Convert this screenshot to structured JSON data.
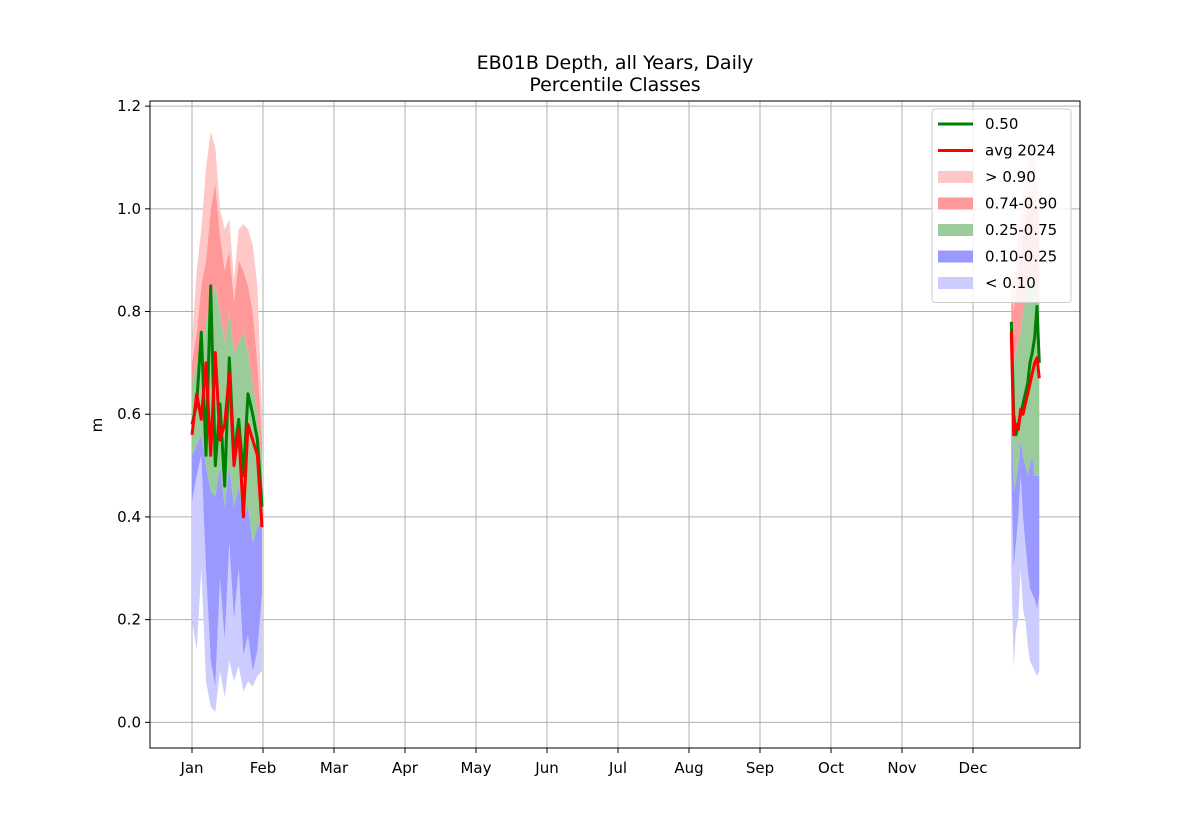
{
  "chart_data": {
    "type": "area",
    "title": "EB01B Depth, all Years, Daily",
    "subtitle": "Percentile Classes",
    "xlabel": "",
    "ylabel": "m",
    "x_axis": {
      "unit": "month",
      "tick_labels": [
        "Jan",
        "Feb",
        "Mar",
        "Apr",
        "May",
        "Jun",
        "Jul",
        "Aug",
        "Sep",
        "Oct",
        "Nov",
        "Dec"
      ],
      "day_range": [
        1,
        365
      ]
    },
    "ylim": [
      -0.05,
      1.21
    ],
    "yticks": [
      "0.0",
      "0.2",
      "0.4",
      "0.6",
      "0.8",
      "1.0",
      "1.2"
    ],
    "grid": true,
    "legend_position": "top-right",
    "colors": {
      "p50": "#008000",
      "avg": "#ff0000",
      "gt90": "#ffc8c8",
      "p74_90": "#ff9999",
      "p25_75": "#99cc99",
      "p10_25": "#9999ff",
      "lt10": "#ccccff"
    },
    "legend": [
      {
        "key": "p50",
        "label": "0.50",
        "kind": "line"
      },
      {
        "key": "avg",
        "label": "avg 2024",
        "kind": "line"
      },
      {
        "key": "gt90",
        "label": "> 0.90",
        "kind": "patch"
      },
      {
        "key": "p74_90",
        "label": "0.74-0.90",
        "kind": "patch"
      },
      {
        "key": "p25_75",
        "label": "0.25-0.75",
        "kind": "patch"
      },
      {
        "key": "p10_25",
        "label": "0.10-0.25",
        "kind": "patch"
      },
      {
        "key": "lt10",
        "label": "< 0.10",
        "kind": "patch"
      }
    ],
    "segments": [
      {
        "days": [
          1,
          3,
          5,
          7,
          9,
          11,
          13,
          15,
          17,
          19,
          21,
          23,
          25,
          27,
          29,
          31
        ],
        "min": [
          0.2,
          0.14,
          0.3,
          0.08,
          0.03,
          0.02,
          0.1,
          0.05,
          0.12,
          0.08,
          0.11,
          0.06,
          0.08,
          0.07,
          0.09,
          0.1
        ],
        "p10": [
          0.43,
          0.48,
          0.52,
          0.3,
          0.12,
          0.07,
          0.28,
          0.16,
          0.35,
          0.2,
          0.3,
          0.13,
          0.17,
          0.1,
          0.14,
          0.25
        ],
        "p25": [
          0.52,
          0.54,
          0.56,
          0.5,
          0.45,
          0.44,
          0.5,
          0.42,
          0.5,
          0.42,
          0.46,
          0.4,
          0.42,
          0.35,
          0.38,
          0.4
        ],
        "p75": [
          0.66,
          0.7,
          0.72,
          0.78,
          0.82,
          0.85,
          0.8,
          0.74,
          0.8,
          0.72,
          0.74,
          0.76,
          0.72,
          0.66,
          0.6,
          0.5
        ],
        "p90": [
          0.7,
          0.76,
          0.85,
          0.9,
          1.0,
          1.05,
          0.95,
          0.88,
          0.92,
          0.82,
          0.9,
          0.88,
          0.85,
          0.8,
          0.7,
          0.55
        ],
        "max": [
          0.74,
          0.88,
          0.96,
          1.08,
          1.15,
          1.12,
          1.0,
          0.96,
          0.98,
          0.86,
          0.96,
          0.97,
          0.96,
          0.93,
          0.85,
          0.6
        ],
        "p50": [
          0.58,
          0.62,
          0.76,
          0.52,
          0.85,
          0.5,
          0.62,
          0.46,
          0.71,
          0.52,
          0.59,
          0.48,
          0.64,
          0.6,
          0.55,
          0.42
        ],
        "avg": [
          0.56,
          0.64,
          0.59,
          0.7,
          0.52,
          0.72,
          0.55,
          0.58,
          0.68,
          0.5,
          0.57,
          0.4,
          0.58,
          0.55,
          0.52,
          0.38
        ]
      },
      {
        "days": [
          352,
          353,
          354,
          355,
          356,
          357,
          358,
          359,
          360,
          361,
          362,
          363,
          364
        ],
        "min": [
          0.3,
          0.11,
          0.18,
          0.2,
          0.3,
          0.22,
          0.2,
          0.15,
          0.12,
          0.11,
          0.1,
          0.09,
          0.1
        ],
        "p10": [
          0.5,
          0.3,
          0.35,
          0.4,
          0.48,
          0.4,
          0.35,
          0.3,
          0.26,
          0.25,
          0.24,
          0.22,
          0.25
        ],
        "p25": [
          0.62,
          0.45,
          0.47,
          0.5,
          0.55,
          0.52,
          0.5,
          0.48,
          0.5,
          0.52,
          0.48,
          0.48,
          0.48
        ],
        "p75": [
          0.78,
          0.7,
          0.72,
          0.74,
          0.76,
          0.8,
          0.82,
          0.84,
          0.86,
          0.88,
          0.86,
          0.84,
          0.82
        ],
        "p90": [
          0.85,
          0.8,
          0.84,
          0.88,
          0.92,
          0.95,
          0.98,
          1.0,
          1.02,
          1.04,
          1.02,
          1.0,
          0.98
        ],
        "max": [
          0.9,
          0.85,
          0.9,
          0.95,
          1.0,
          1.03,
          1.06,
          1.08,
          1.1,
          1.12,
          1.1,
          1.06,
          1.02
        ],
        "p50": [
          0.78,
          0.6,
          0.56,
          0.58,
          0.6,
          0.62,
          0.64,
          0.66,
          0.7,
          0.72,
          0.75,
          0.81,
          0.7
        ],
        "avg": [
          0.76,
          0.56,
          0.58,
          0.57,
          0.61,
          0.6,
          0.62,
          0.64,
          0.66,
          0.68,
          0.7,
          0.71,
          0.67
        ]
      }
    ]
  }
}
